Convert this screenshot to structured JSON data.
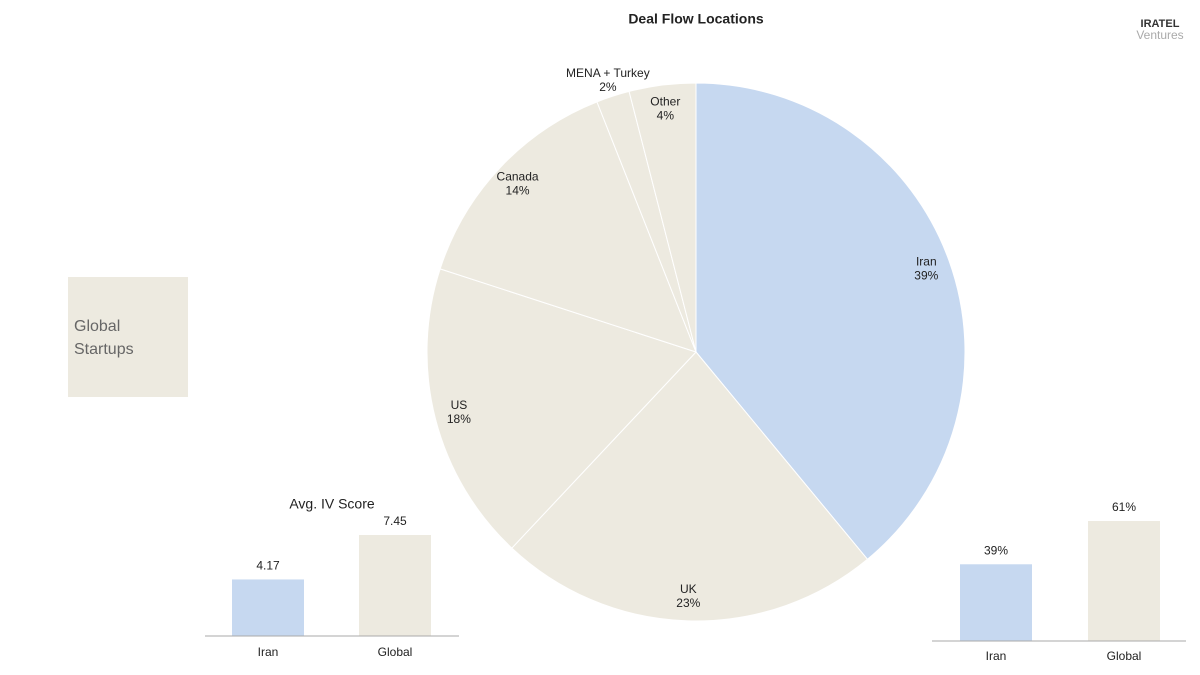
{
  "chart_data": [
    {
      "type": "pie",
      "title": "Deal Flow Locations",
      "categories": [
        "Iran",
        "UK",
        "US",
        "Canada",
        "MENA + Turkey",
        "Other"
      ],
      "values": [
        39,
        23,
        18,
        14,
        2,
        4
      ],
      "value_labels": [
        "39%",
        "23%",
        "18%",
        "14%",
        "2%",
        "4%"
      ],
      "colors": [
        "#c6d8f0",
        "#edeae0",
        "#edeae0",
        "#edeae0",
        "#edeae0",
        "#edeae0"
      ]
    },
    {
      "type": "bar",
      "title": "Avg. IV Score",
      "categories": [
        "Iran",
        "Global"
      ],
      "values": [
        4.17,
        7.45
      ],
      "colors": [
        "#c6d8f0",
        "#edeae0"
      ]
    },
    {
      "type": "bar",
      "categories": [
        "Iran",
        "Global"
      ],
      "values": [
        39,
        61
      ],
      "value_labels": [
        "39%",
        "61%"
      ],
      "colors": [
        "#c6d8f0",
        "#edeae0"
      ]
    }
  ],
  "label_box": "Global Startups",
  "logo": {
    "name": "IRATEL",
    "tagline": "Ventures"
  }
}
